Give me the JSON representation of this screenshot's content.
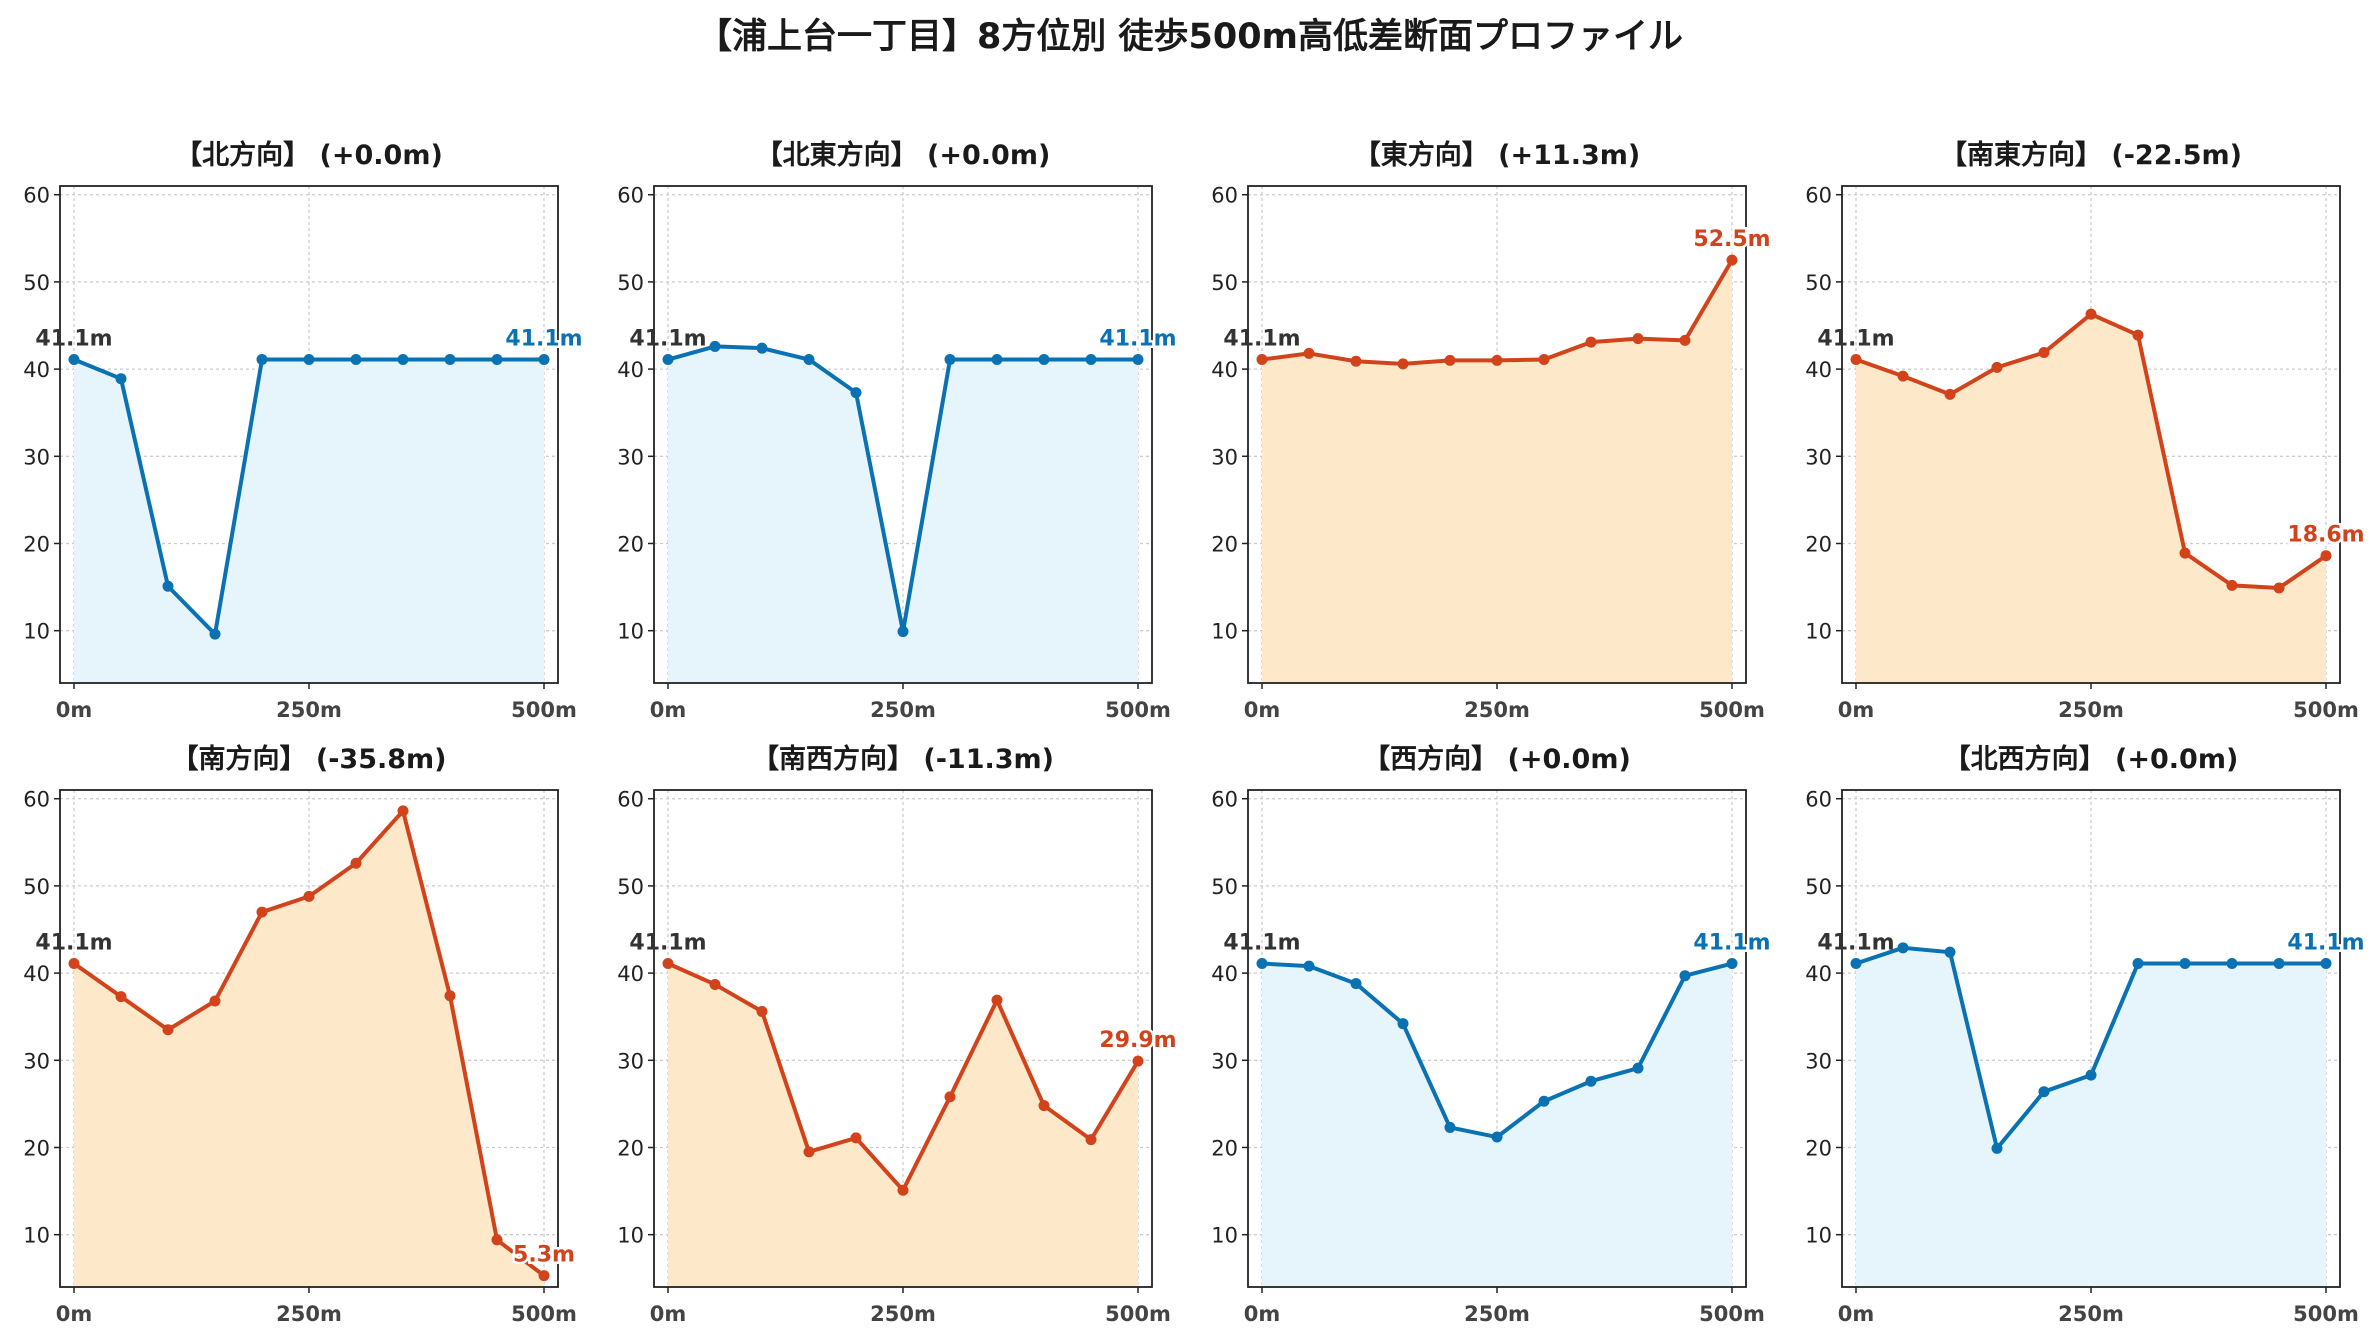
{
  "title": "【浦上台一丁目】8方位別 徒歩500m高低差断面プロファイル",
  "colors": {
    "up_line": "#d2431c",
    "up_fill": "#fde9c9",
    "flat_line": "#0a72b3",
    "flat_fill": "#e6f4fb",
    "start_label": "#333333",
    "grid": "#cccccc"
  },
  "chart_data": [
    {
      "type": "area",
      "title": "【北方向】 (+0.0m)",
      "x": [
        0,
        50,
        100,
        150,
        200,
        250,
        300,
        350,
        400,
        450,
        500
      ],
      "y": [
        41.1,
        38.9,
        15.1,
        9.6,
        41.1,
        41.1,
        41.1,
        41.1,
        41.1,
        41.1,
        41.1
      ],
      "xticks": [
        "0m",
        "250m",
        "500m"
      ],
      "yticks": [
        "10",
        "20",
        "30",
        "40",
        "50",
        "60"
      ],
      "xlim": [
        0,
        500
      ],
      "ylim": [
        4,
        61
      ],
      "grid": true,
      "start_label": "41.1m",
      "end_label": "41.1m",
      "theme": "flat"
    },
    {
      "type": "area",
      "title": "【北東方向】 (+0.0m)",
      "x": [
        0,
        50,
        100,
        150,
        200,
        250,
        300,
        350,
        400,
        450,
        500
      ],
      "y": [
        41.1,
        42.6,
        42.4,
        41.1,
        37.3,
        9.9,
        41.1,
        41.1,
        41.1,
        41.1,
        41.1
      ],
      "xticks": [
        "0m",
        "250m",
        "500m"
      ],
      "yticks": [
        "10",
        "20",
        "30",
        "40",
        "50",
        "60"
      ],
      "xlim": [
        0,
        500
      ],
      "ylim": [
        4,
        61
      ],
      "grid": true,
      "start_label": "41.1m",
      "end_label": "41.1m",
      "theme": "flat"
    },
    {
      "type": "area",
      "title": "【東方向】 (+11.3m)",
      "x": [
        0,
        50,
        100,
        150,
        200,
        250,
        300,
        350,
        400,
        450,
        500
      ],
      "y": [
        41.1,
        41.8,
        40.9,
        40.6,
        41.0,
        41.0,
        41.1,
        43.1,
        43.5,
        43.3,
        52.5
      ],
      "xticks": [
        "0m",
        "250m",
        "500m"
      ],
      "yticks": [
        "10",
        "20",
        "30",
        "40",
        "50",
        "60"
      ],
      "xlim": [
        0,
        500
      ],
      "ylim": [
        4,
        61
      ],
      "grid": true,
      "start_label": "41.1m",
      "end_label": "52.5m",
      "theme": "up"
    },
    {
      "type": "area",
      "title": "【南東方向】 (-22.5m)",
      "x": [
        0,
        50,
        100,
        150,
        200,
        250,
        300,
        350,
        400,
        450,
        500
      ],
      "y": [
        41.1,
        39.2,
        37.1,
        40.2,
        41.9,
        46.3,
        43.9,
        18.9,
        15.2,
        14.9,
        18.6
      ],
      "xticks": [
        "0m",
        "250m",
        "500m"
      ],
      "yticks": [
        "10",
        "20",
        "30",
        "40",
        "50",
        "60"
      ],
      "xlim": [
        0,
        500
      ],
      "ylim": [
        4,
        61
      ],
      "grid": true,
      "start_label": "41.1m",
      "end_label": "18.6m",
      "theme": "up"
    },
    {
      "type": "area",
      "title": "【南方向】 (-35.8m)",
      "x": [
        0,
        50,
        100,
        150,
        200,
        250,
        300,
        350,
        400,
        450,
        500
      ],
      "y": [
        41.1,
        37.3,
        33.5,
        36.8,
        47.0,
        48.8,
        52.6,
        58.6,
        37.4,
        9.4,
        5.3
      ],
      "xticks": [
        "0m",
        "250m",
        "500m"
      ],
      "yticks": [
        "10",
        "20",
        "30",
        "40",
        "50",
        "60"
      ],
      "xlim": [
        0,
        500
      ],
      "ylim": [
        4,
        61
      ],
      "grid": true,
      "start_label": "41.1m",
      "end_label": "5.3m",
      "theme": "up"
    },
    {
      "type": "area",
      "title": "【南西方向】 (-11.3m)",
      "x": [
        0,
        50,
        100,
        150,
        200,
        250,
        300,
        350,
        400,
        450,
        500
      ],
      "y": [
        41.1,
        38.7,
        35.6,
        19.5,
        21.1,
        15.1,
        25.8,
        36.9,
        24.8,
        20.9,
        29.9
      ],
      "xticks": [
        "0m",
        "250m",
        "500m"
      ],
      "yticks": [
        "10",
        "20",
        "30",
        "40",
        "50",
        "60"
      ],
      "xlim": [
        0,
        500
      ],
      "ylim": [
        4,
        61
      ],
      "grid": true,
      "start_label": "41.1m",
      "end_label": "29.9m",
      "theme": "up"
    },
    {
      "type": "area",
      "title": "【西方向】 (+0.0m)",
      "x": [
        0,
        50,
        100,
        150,
        200,
        250,
        300,
        350,
        400,
        450,
        500
      ],
      "y": [
        41.1,
        40.8,
        38.8,
        34.2,
        22.3,
        21.2,
        25.3,
        27.6,
        29.1,
        39.7,
        41.1
      ],
      "xticks": [
        "0m",
        "250m",
        "500m"
      ],
      "yticks": [
        "10",
        "20",
        "30",
        "40",
        "50",
        "60"
      ],
      "xlim": [
        0,
        500
      ],
      "ylim": [
        4,
        61
      ],
      "grid": true,
      "start_label": "41.1m",
      "end_label": "41.1m",
      "theme": "flat"
    },
    {
      "type": "area",
      "title": "【北西方向】 (+0.0m)",
      "x": [
        0,
        50,
        100,
        150,
        200,
        250,
        300,
        350,
        400,
        450,
        500
      ],
      "y": [
        41.1,
        42.9,
        42.4,
        19.9,
        26.4,
        28.3,
        41.1,
        41.1,
        41.1,
        41.1,
        41.1
      ],
      "xticks": [
        "0m",
        "250m",
        "500m"
      ],
      "yticks": [
        "10",
        "20",
        "30",
        "40",
        "50",
        "60"
      ],
      "xlim": [
        0,
        500
      ],
      "ylim": [
        4,
        61
      ],
      "grid": true,
      "start_label": "41.1m",
      "end_label": "41.1m",
      "theme": "flat"
    }
  ]
}
